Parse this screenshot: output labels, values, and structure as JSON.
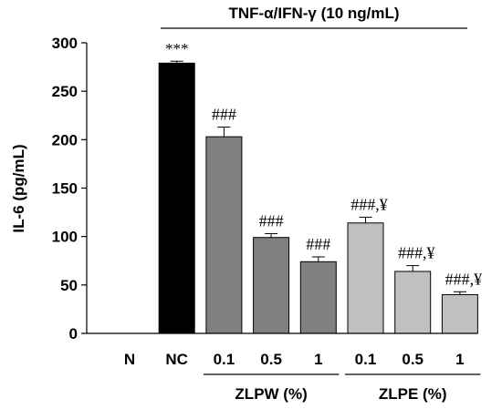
{
  "chart_data": {
    "type": "bar",
    "title": "TNF-α/IFN-γ (10 ng/mL)",
    "ylabel": "IL-6 (pg/mL)",
    "xlabel": "",
    "ylim": [
      0,
      300
    ],
    "yticks": [
      0,
      50,
      100,
      150,
      200,
      250,
      300
    ],
    "categories": [
      "N",
      "NC",
      "0.1",
      "0.5",
      "1",
      "0.1",
      "0.5",
      "1"
    ],
    "values": [
      0,
      279,
      203,
      99,
      74,
      114,
      64,
      40
    ],
    "errors": [
      0,
      2,
      10,
      4,
      5,
      6,
      6,
      3
    ],
    "colors": [
      "#ffffff",
      "#000000",
      "#808080",
      "#808080",
      "#808080",
      "#c0c0c0",
      "#c0c0c0",
      "#c0c0c0"
    ],
    "annotations": [
      "",
      "***",
      "###",
      "###",
      "###",
      "###,¥",
      "###,¥",
      "###,¥"
    ],
    "groups": [
      {
        "label": "ZLPW (%)",
        "start": 2,
        "end": 4
      },
      {
        "label": "ZLPE (%)",
        "start": 5,
        "end": 7
      }
    ],
    "treatment_span": {
      "start": 1,
      "end": 7
    },
    "grid": false,
    "legend": "none"
  }
}
